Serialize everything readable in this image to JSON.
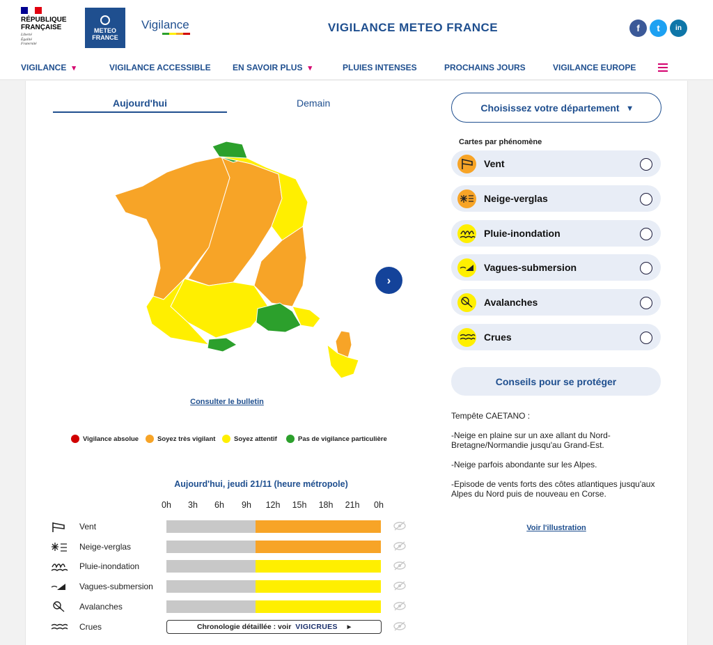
{
  "header": {
    "rf_name_line1": "RÉPUBLIQUE",
    "rf_name_line2": "FRANÇAISE",
    "rf_motto_1": "Liberté",
    "rf_motto_2": "Égalité",
    "rf_motto_3": "Fraternité",
    "mf_line1": "METEO",
    "mf_line2": "FRANCE",
    "vigilance_logo": "Vigilance",
    "site_title": "VIGILANCE METEO FRANCE"
  },
  "socials": [
    {
      "name": "facebook-icon",
      "glyph": "f",
      "color": "#3b5998"
    },
    {
      "name": "twitter-icon",
      "glyph": "t",
      "color": "#1da1f2"
    },
    {
      "name": "linkedin-icon",
      "glyph": "in",
      "color": "#0e76a8"
    }
  ],
  "nav": {
    "items": [
      {
        "label": "VIGILANCE"
      },
      {
        "label": "VIGILANCE ACCESSIBLE"
      },
      {
        "label": "EN SAVOIR PLUS"
      },
      {
        "label": "PLUIES INTENSES"
      },
      {
        "label": "PROCHAINS JOURS"
      },
      {
        "label": "VIGILANCE EUROPE"
      }
    ]
  },
  "tabs": {
    "today": "Aujourd'hui",
    "tomorrow": "Demain"
  },
  "map": {
    "next_icon": "chevron-right-icon",
    "bulletin_link": "Consulter le bulletin"
  },
  "legend": [
    {
      "label": "Vigilance absolue",
      "color": "#d10000"
    },
    {
      "label": "Soyez très vigilant",
      "color": "#f7a427"
    },
    {
      "label": "Soyez attentif",
      "color": "#ffef00"
    },
    {
      "label": "Pas de vigilance particulière",
      "color": "#2ca02c"
    }
  ],
  "timeline": {
    "title": "Aujourd'hui, jeudi 21/11 (heure métropole)",
    "hours": [
      "0h",
      "3h",
      "6h",
      "9h",
      "12h",
      "15h",
      "18h",
      "21h",
      "0h"
    ],
    "rows": [
      {
        "label": "Vent",
        "color": "#f7a427"
      },
      {
        "label": "Neige-verglas",
        "color": "#f7a427"
      },
      {
        "label": "Pluie-inondation",
        "color": "#ffef00"
      },
      {
        "label": "Vagues-submersion",
        "color": "#ffef00"
      },
      {
        "label": "Avalanches",
        "color": "#ffef00"
      },
      {
        "label": "Crues"
      }
    ],
    "crues_text": "Chronologie détaillée : voir",
    "vigicrues": "VIGICRUES",
    "play": "▸"
  },
  "sidebar": {
    "dept_button": "Choisissez votre département",
    "cartes_label": "Cartes par phénomène",
    "phenomena": [
      {
        "label": "Vent",
        "color": "#f7a427"
      },
      {
        "label": "Neige-verglas",
        "color": "#f7a427"
      },
      {
        "label": "Pluie-inondation",
        "color": "#ffef00"
      },
      {
        "label": "Vagues-submersion",
        "color": "#ffef00"
      },
      {
        "label": "Avalanches",
        "color": "#ffef00"
      },
      {
        "label": "Crues",
        "color": "#ffef00"
      }
    ],
    "conseils": "Conseils pour se protéger",
    "info_title": "Tempête CAETANO :",
    "info_p1": "-Neige en plaine sur un axe allant du Nord-Bretagne/Normandie jusqu'au Grand-Est.",
    "info_p2": "-Neige parfois abondante sur les Alpes.",
    "info_p3": "-Episode de vents forts des côtes atlantiques jusqu'aux Alpes du Nord puis de nouveau en Corse.",
    "illustration_link": "Voir l'illustration"
  }
}
